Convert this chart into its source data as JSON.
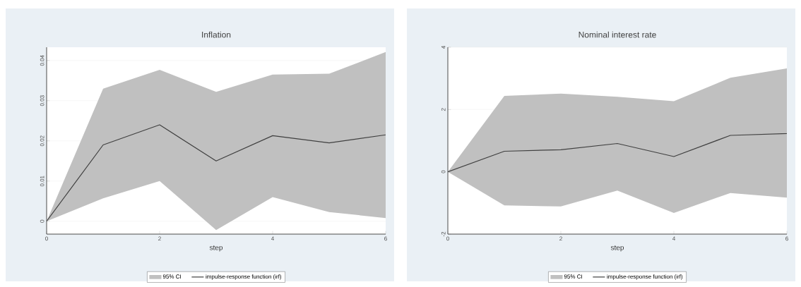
{
  "chart_data": [
    {
      "type": "line",
      "title": "Inflation",
      "xlabel": "step",
      "x": [
        0,
        1,
        2,
        3,
        4,
        5,
        6
      ],
      "xlim": [
        0,
        6
      ],
      "xticks": [
        0,
        2,
        4,
        6
      ],
      "ylim": [
        -0.0032,
        0.0433
      ],
      "yticks": [
        0,
        0.01,
        0.02,
        0.03,
        0.04
      ],
      "grid": "y",
      "legend": "bottom",
      "line_style": "solid",
      "marker": "none",
      "annotations": [
        "95% CI"
      ],
      "series": [
        {
          "name": "impulse-response function (irf)",
          "color": "#404040",
          "values": [
            0,
            0.019,
            0.024,
            0.015,
            0.0213,
            0.0195,
            0.0215
          ],
          "lower": [
            0,
            0.0057,
            0.01,
            -0.0022,
            0.006,
            0.0023,
            0.0008
          ],
          "upper": [
            0,
            0.033,
            0.0377,
            0.0322,
            0.0365,
            0.0367,
            0.0421
          ]
        }
      ]
    },
    {
      "type": "line",
      "title": "Nominal interest rate",
      "xlabel": "step",
      "x": [
        0,
        1,
        2,
        3,
        4,
        5,
        6
      ],
      "xlim": [
        0,
        6
      ],
      "xticks": [
        0,
        2,
        4,
        6
      ],
      "ylim": [
        -2,
        4
      ],
      "yticks": [
        -2,
        0,
        2,
        4
      ],
      "grid": "y",
      "legend": "bottom",
      "line_style": "solid",
      "marker": "none",
      "annotations": [
        "95% CI"
      ],
      "series": [
        {
          "name": "impulse-response function (irf)",
          "color": "#404040",
          "values": [
            0,
            0.66,
            0.71,
            0.91,
            0.49,
            1.17,
            1.23
          ],
          "lower": [
            0,
            -1.08,
            -1.11,
            -0.6,
            -1.32,
            -0.68,
            -0.83
          ],
          "upper": [
            0,
            2.44,
            2.51,
            2.41,
            2.27,
            3.02,
            3.32
          ]
        }
      ]
    }
  ]
}
